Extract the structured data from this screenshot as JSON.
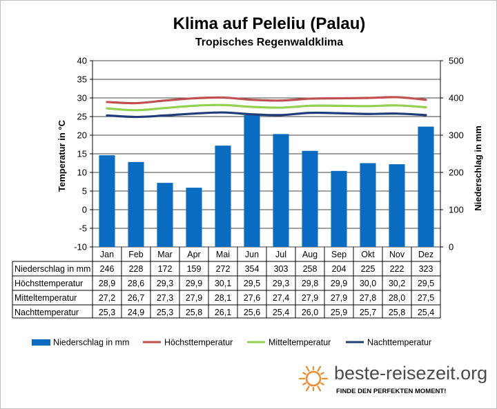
{
  "chart_data": {
    "type": "bar",
    "title": "Klima auf Peleliu (Palau)",
    "subtitle": "Tropisches Regenwaldklima",
    "ylabel_left": "Temperatur in °C",
    "ylabel_right": "Niederschlag in mm",
    "ylim_left": [
      -10,
      40
    ],
    "yticks_left": [
      -10,
      -5,
      0,
      5,
      10,
      15,
      20,
      25,
      30,
      35,
      40
    ],
    "ylim_right": [
      0,
      500
    ],
    "yticks_right": [
      0,
      100,
      200,
      300,
      400,
      500
    ],
    "categories": [
      "Jan",
      "Feb",
      "Mar",
      "Apr",
      "Mai",
      "Jun",
      "Jul",
      "Aug",
      "Sep",
      "Okt",
      "Nov",
      "Dez"
    ],
    "series": [
      {
        "name": "Niederschlag in mm",
        "type": "bar",
        "axis": "right",
        "color": "#0a6cc1",
        "values": [
          246,
          228,
          172,
          159,
          272,
          354,
          303,
          258,
          204,
          225,
          222,
          323
        ],
        "labels": [
          "246",
          "228",
          "172",
          "159",
          "272",
          "354",
          "303",
          "258",
          "204",
          "225",
          "222",
          "323"
        ]
      },
      {
        "name": "Höchsttemperatur",
        "type": "line",
        "axis": "left",
        "color": "#c0504d",
        "values": [
          28.9,
          28.6,
          29.3,
          29.9,
          30.1,
          29.5,
          29.3,
          29.8,
          29.9,
          30.0,
          30.2,
          29.5
        ],
        "labels": [
          "28,9",
          "28,6",
          "29,3",
          "29,9",
          "30,1",
          "29,5",
          "29,3",
          "29,8",
          "29,9",
          "30,0",
          "30,2",
          "29,5"
        ]
      },
      {
        "name": "Mitteltemperatur",
        "type": "line",
        "axis": "left",
        "color": "#92d050",
        "values": [
          27.2,
          26.7,
          27.3,
          27.9,
          28.1,
          27.6,
          27.4,
          27.9,
          27.9,
          27.8,
          28.0,
          27.5
        ],
        "labels": [
          "27,2",
          "26,7",
          "27,3",
          "27,9",
          "28,1",
          "27,6",
          "27,4",
          "27,9",
          "27,9",
          "27,8",
          "28,0",
          "27,5"
        ]
      },
      {
        "name": "Nachttemperatur",
        "type": "line",
        "axis": "left",
        "color": "#1f3d7a",
        "values": [
          25.3,
          24.9,
          25.3,
          25.8,
          26.1,
          25.6,
          25.4,
          26.0,
          25.9,
          25.7,
          25.8,
          25.4
        ],
        "labels": [
          "25,3",
          "24,9",
          "25,3",
          "25,8",
          "26,1",
          "25,6",
          "25,4",
          "26,0",
          "25,9",
          "25,7",
          "25,8",
          "25,4"
        ]
      }
    ],
    "grid": true,
    "legend_position": "bottom"
  },
  "brand": {
    "name": "beste-reisezeit.org",
    "tagline": "FINDE DEN PERFEKTEN MOMENT!",
    "sun_color": "#f08a2c",
    "name_color": "#4a4a4a"
  }
}
